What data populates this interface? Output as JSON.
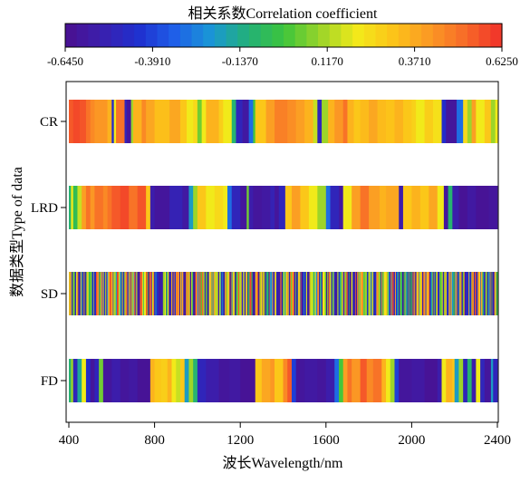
{
  "chart_data": {
    "type": "heatmap",
    "title": "相关系数Correlation coefficient",
    "xlabel": "波长Wavelength/nm",
    "ylabel": "数据类型Type of data",
    "xlim": [
      400,
      2400
    ],
    "x_ticks": [
      "400",
      "800",
      "1200",
      "1600",
      "2000",
      "2400"
    ],
    "colorbar": {
      "min": -0.645,
      "max": 0.625,
      "tick_labels": [
        "-0.6450",
        "-0.3910",
        "-0.1370",
        "0.1170",
        "0.3710",
        "0.6250"
      ],
      "colors": [
        "#4b0f8f",
        "#3a1fae",
        "#1f2fcf",
        "#1f5fe8",
        "#1a96d6",
        "#22b07a",
        "#3cc43c",
        "#9ad42a",
        "#f2ea1a",
        "#fcc419",
        "#fb9a24",
        "#f76a28",
        "#f0302a"
      ]
    },
    "series": [
      {
        "name": "CR",
        "segments": [
          [
            400,
            0.55
          ],
          [
            420,
            0.58
          ],
          [
            450,
            0.56
          ],
          [
            480,
            0.5
          ],
          [
            500,
            0.45
          ],
          [
            520,
            0.42
          ],
          [
            580,
            0.35
          ],
          [
            600,
            -0.45
          ],
          [
            610,
            0.2
          ],
          [
            620,
            0.5
          ],
          [
            660,
            -0.5
          ],
          [
            670,
            -0.6
          ],
          [
            690,
            0.1
          ],
          [
            700,
            0.35
          ],
          [
            740,
            0.45
          ],
          [
            760,
            0.38
          ],
          [
            800,
            0.32
          ],
          [
            870,
            0.38
          ],
          [
            920,
            0.3
          ],
          [
            950,
            0.2
          ],
          [
            980,
            0.25
          ],
          [
            1000,
            0.05
          ],
          [
            1020,
            0.2
          ],
          [
            1040,
            0.35
          ],
          [
            1100,
            0.28
          ],
          [
            1120,
            0.2
          ],
          [
            1160,
            -0.1
          ],
          [
            1180,
            -0.5
          ],
          [
            1210,
            -0.58
          ],
          [
            1240,
            -0.3
          ],
          [
            1260,
            0.0
          ],
          [
            1270,
            0.3
          ],
          [
            1320,
            0.4
          ],
          [
            1360,
            0.47
          ],
          [
            1420,
            0.44
          ],
          [
            1460,
            0.4
          ],
          [
            1500,
            0.35
          ],
          [
            1540,
            0.15
          ],
          [
            1560,
            -0.5
          ],
          [
            1580,
            0.1
          ],
          [
            1610,
            0.35
          ],
          [
            1640,
            0.42
          ],
          [
            1680,
            0.5
          ],
          [
            1700,
            0.35
          ],
          [
            1730,
            0.3
          ],
          [
            1760,
            0.33
          ],
          [
            1800,
            0.38
          ],
          [
            1840,
            0.33
          ],
          [
            1880,
            0.31
          ],
          [
            1920,
            0.35
          ],
          [
            1960,
            0.3
          ],
          [
            2000,
            0.27
          ],
          [
            2020,
            0.2
          ],
          [
            2060,
            0.28
          ],
          [
            2100,
            0.23
          ],
          [
            2140,
            -0.45
          ],
          [
            2160,
            -0.6
          ],
          [
            2210,
            -0.3
          ],
          [
            2240,
            0.25
          ],
          [
            2260,
            0.1
          ],
          [
            2280,
            0.4
          ],
          [
            2300,
            0.2
          ],
          [
            2340,
            0.3
          ],
          [
            2370,
            0.1
          ],
          [
            2390,
            0.2
          ]
        ]
      },
      {
        "name": "LRD",
        "segments": [
          [
            400,
            -0.1
          ],
          [
            410,
            0.2
          ],
          [
            420,
            -0.05
          ],
          [
            440,
            0.15
          ],
          [
            460,
            0.4
          ],
          [
            480,
            0.5
          ],
          [
            500,
            0.42
          ],
          [
            520,
            0.5
          ],
          [
            560,
            0.45
          ],
          [
            580,
            0.5
          ],
          [
            600,
            0.55
          ],
          [
            640,
            0.58
          ],
          [
            680,
            0.5
          ],
          [
            720,
            0.56
          ],
          [
            760,
            0.3
          ],
          [
            780,
            -0.55
          ],
          [
            800,
            -0.6
          ],
          [
            870,
            -0.52
          ],
          [
            930,
            -0.58
          ],
          [
            960,
            -0.2
          ],
          [
            980,
            0.1
          ],
          [
            1000,
            0.3
          ],
          [
            1040,
            0.2
          ],
          [
            1080,
            0.25
          ],
          [
            1120,
            0.2
          ],
          [
            1140,
            -0.3
          ],
          [
            1160,
            -0.5
          ],
          [
            1200,
            -0.6
          ],
          [
            1230,
            0.05
          ],
          [
            1240,
            -0.55
          ],
          [
            1260,
            -0.6
          ],
          [
            1300,
            -0.58
          ],
          [
            1340,
            -0.52
          ],
          [
            1360,
            -0.6
          ],
          [
            1380,
            -0.5
          ],
          [
            1410,
            0.3
          ],
          [
            1440,
            0.4
          ],
          [
            1480,
            0.3
          ],
          [
            1520,
            0.2
          ],
          [
            1560,
            0.1
          ],
          [
            1600,
            -0.3
          ],
          [
            1620,
            -0.5
          ],
          [
            1660,
            -0.58
          ],
          [
            1680,
            0.2
          ],
          [
            1720,
            0.4
          ],
          [
            1760,
            0.5
          ],
          [
            1800,
            0.4
          ],
          [
            1850,
            0.35
          ],
          [
            1880,
            0.38
          ],
          [
            1940,
            -0.55
          ],
          [
            1960,
            0.3
          ],
          [
            2000,
            0.35
          ],
          [
            2040,
            0.3
          ],
          [
            2080,
            0.38
          ],
          [
            2120,
            0.2
          ],
          [
            2150,
            -0.6
          ],
          [
            2170,
            -0.1
          ],
          [
            2190,
            -0.55
          ],
          [
            2220,
            -0.62
          ],
          [
            2260,
            -0.58
          ],
          [
            2300,
            -0.62
          ],
          [
            2360,
            -0.6
          ]
        ]
      },
      {
        "name": "SD",
        "segments": []
      },
      {
        "name": "FD",
        "segments": [
          [
            400,
            -0.1
          ],
          [
            410,
            0.1
          ],
          [
            420,
            -0.5
          ],
          [
            440,
            -0.15
          ],
          [
            460,
            0.2
          ],
          [
            480,
            -0.45
          ],
          [
            500,
            -0.6
          ],
          [
            520,
            -0.5
          ],
          [
            540,
            0.05
          ],
          [
            560,
            -0.6
          ],
          [
            600,
            -0.55
          ],
          [
            640,
            -0.6
          ],
          [
            680,
            -0.58
          ],
          [
            720,
            -0.62
          ],
          [
            780,
            0.35
          ],
          [
            800,
            0.3
          ],
          [
            830,
            0.28
          ],
          [
            860,
            0.35
          ],
          [
            880,
            0.2
          ],
          [
            900,
            0.15
          ],
          [
            920,
            0.3
          ],
          [
            940,
            -0.2
          ],
          [
            960,
            0.1
          ],
          [
            980,
            -0.1
          ],
          [
            1000,
            -0.5
          ],
          [
            1040,
            -0.55
          ],
          [
            1100,
            -0.6
          ],
          [
            1150,
            -0.58
          ],
          [
            1200,
            -0.62
          ],
          [
            1270,
            0.3
          ],
          [
            1300,
            0.38
          ],
          [
            1340,
            0.42
          ],
          [
            1360,
            0.3
          ],
          [
            1400,
            0.45
          ],
          [
            1420,
            0.55
          ],
          [
            1440,
            -0.4
          ],
          [
            1460,
            -0.6
          ],
          [
            1500,
            -0.58
          ],
          [
            1560,
            -0.6
          ],
          [
            1600,
            -0.55
          ],
          [
            1640,
            -0.3
          ],
          [
            1660,
            0.0
          ],
          [
            1680,
            0.4
          ],
          [
            1700,
            0.5
          ],
          [
            1720,
            0.42
          ],
          [
            1760,
            0.55
          ],
          [
            1790,
            0.45
          ],
          [
            1820,
            0.5
          ],
          [
            1860,
            0.35
          ],
          [
            1880,
            0.2
          ],
          [
            1900,
            0.1
          ],
          [
            1920,
            -0.4
          ],
          [
            1940,
            -0.6
          ],
          [
            2000,
            -0.58
          ],
          [
            2060,
            -0.62
          ],
          [
            2120,
            -0.55
          ],
          [
            2140,
            0.2
          ],
          [
            2160,
            0.35
          ],
          [
            2190,
            0.3
          ],
          [
            2200,
            -0.2
          ],
          [
            2220,
            0.1
          ],
          [
            2240,
            -0.5
          ],
          [
            2260,
            -0.1
          ],
          [
            2280,
            -0.55
          ],
          [
            2300,
            0.2
          ],
          [
            2320,
            -0.5
          ],
          [
            2340,
            -0.6
          ],
          [
            2370,
            -0.2
          ],
          [
            2380,
            -0.5
          ]
        ]
      }
    ]
  }
}
